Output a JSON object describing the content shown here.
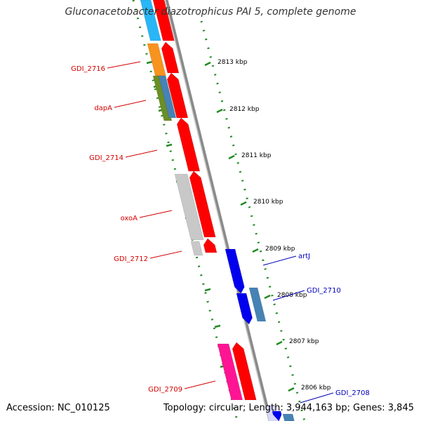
{
  "title": "Gluconacetobacter diazotrophicus PAI 5, complete genome",
  "accession": "Accession: NC_010125",
  "topology": "Topology: circular; Length: 3,944,163 bp; Genes: 3,845",
  "colors": {
    "forward_label": "#d40000",
    "reverse_label": "#0000bb",
    "ruler": "#228b22",
    "backbone": "#888888"
  },
  "ticks": [
    {
      "label": "2813 kbp"
    },
    {
      "label": "2812 kbp"
    },
    {
      "label": "2811 kbp"
    },
    {
      "label": "2810 kbp"
    },
    {
      "label": "2809 kbp"
    },
    {
      "label": "2808 kbp"
    },
    {
      "label": "2807 kbp"
    },
    {
      "label": "2806 kbp"
    }
  ],
  "gene_labels": [
    {
      "name": "GDI_2716",
      "strand": "forward"
    },
    {
      "name": "dapA",
      "strand": "forward"
    },
    {
      "name": "GDI_2714",
      "strand": "forward"
    },
    {
      "name": "oxoA",
      "strand": "forward"
    },
    {
      "name": "GDI_2712",
      "strand": "forward"
    },
    {
      "name": "artJ",
      "strand": "reverse"
    },
    {
      "name": "GDI_2710",
      "strand": "reverse"
    },
    {
      "name": "GDI_2709",
      "strand": "forward"
    },
    {
      "name": "GDI_2708",
      "strand": "reverse"
    }
  ]
}
